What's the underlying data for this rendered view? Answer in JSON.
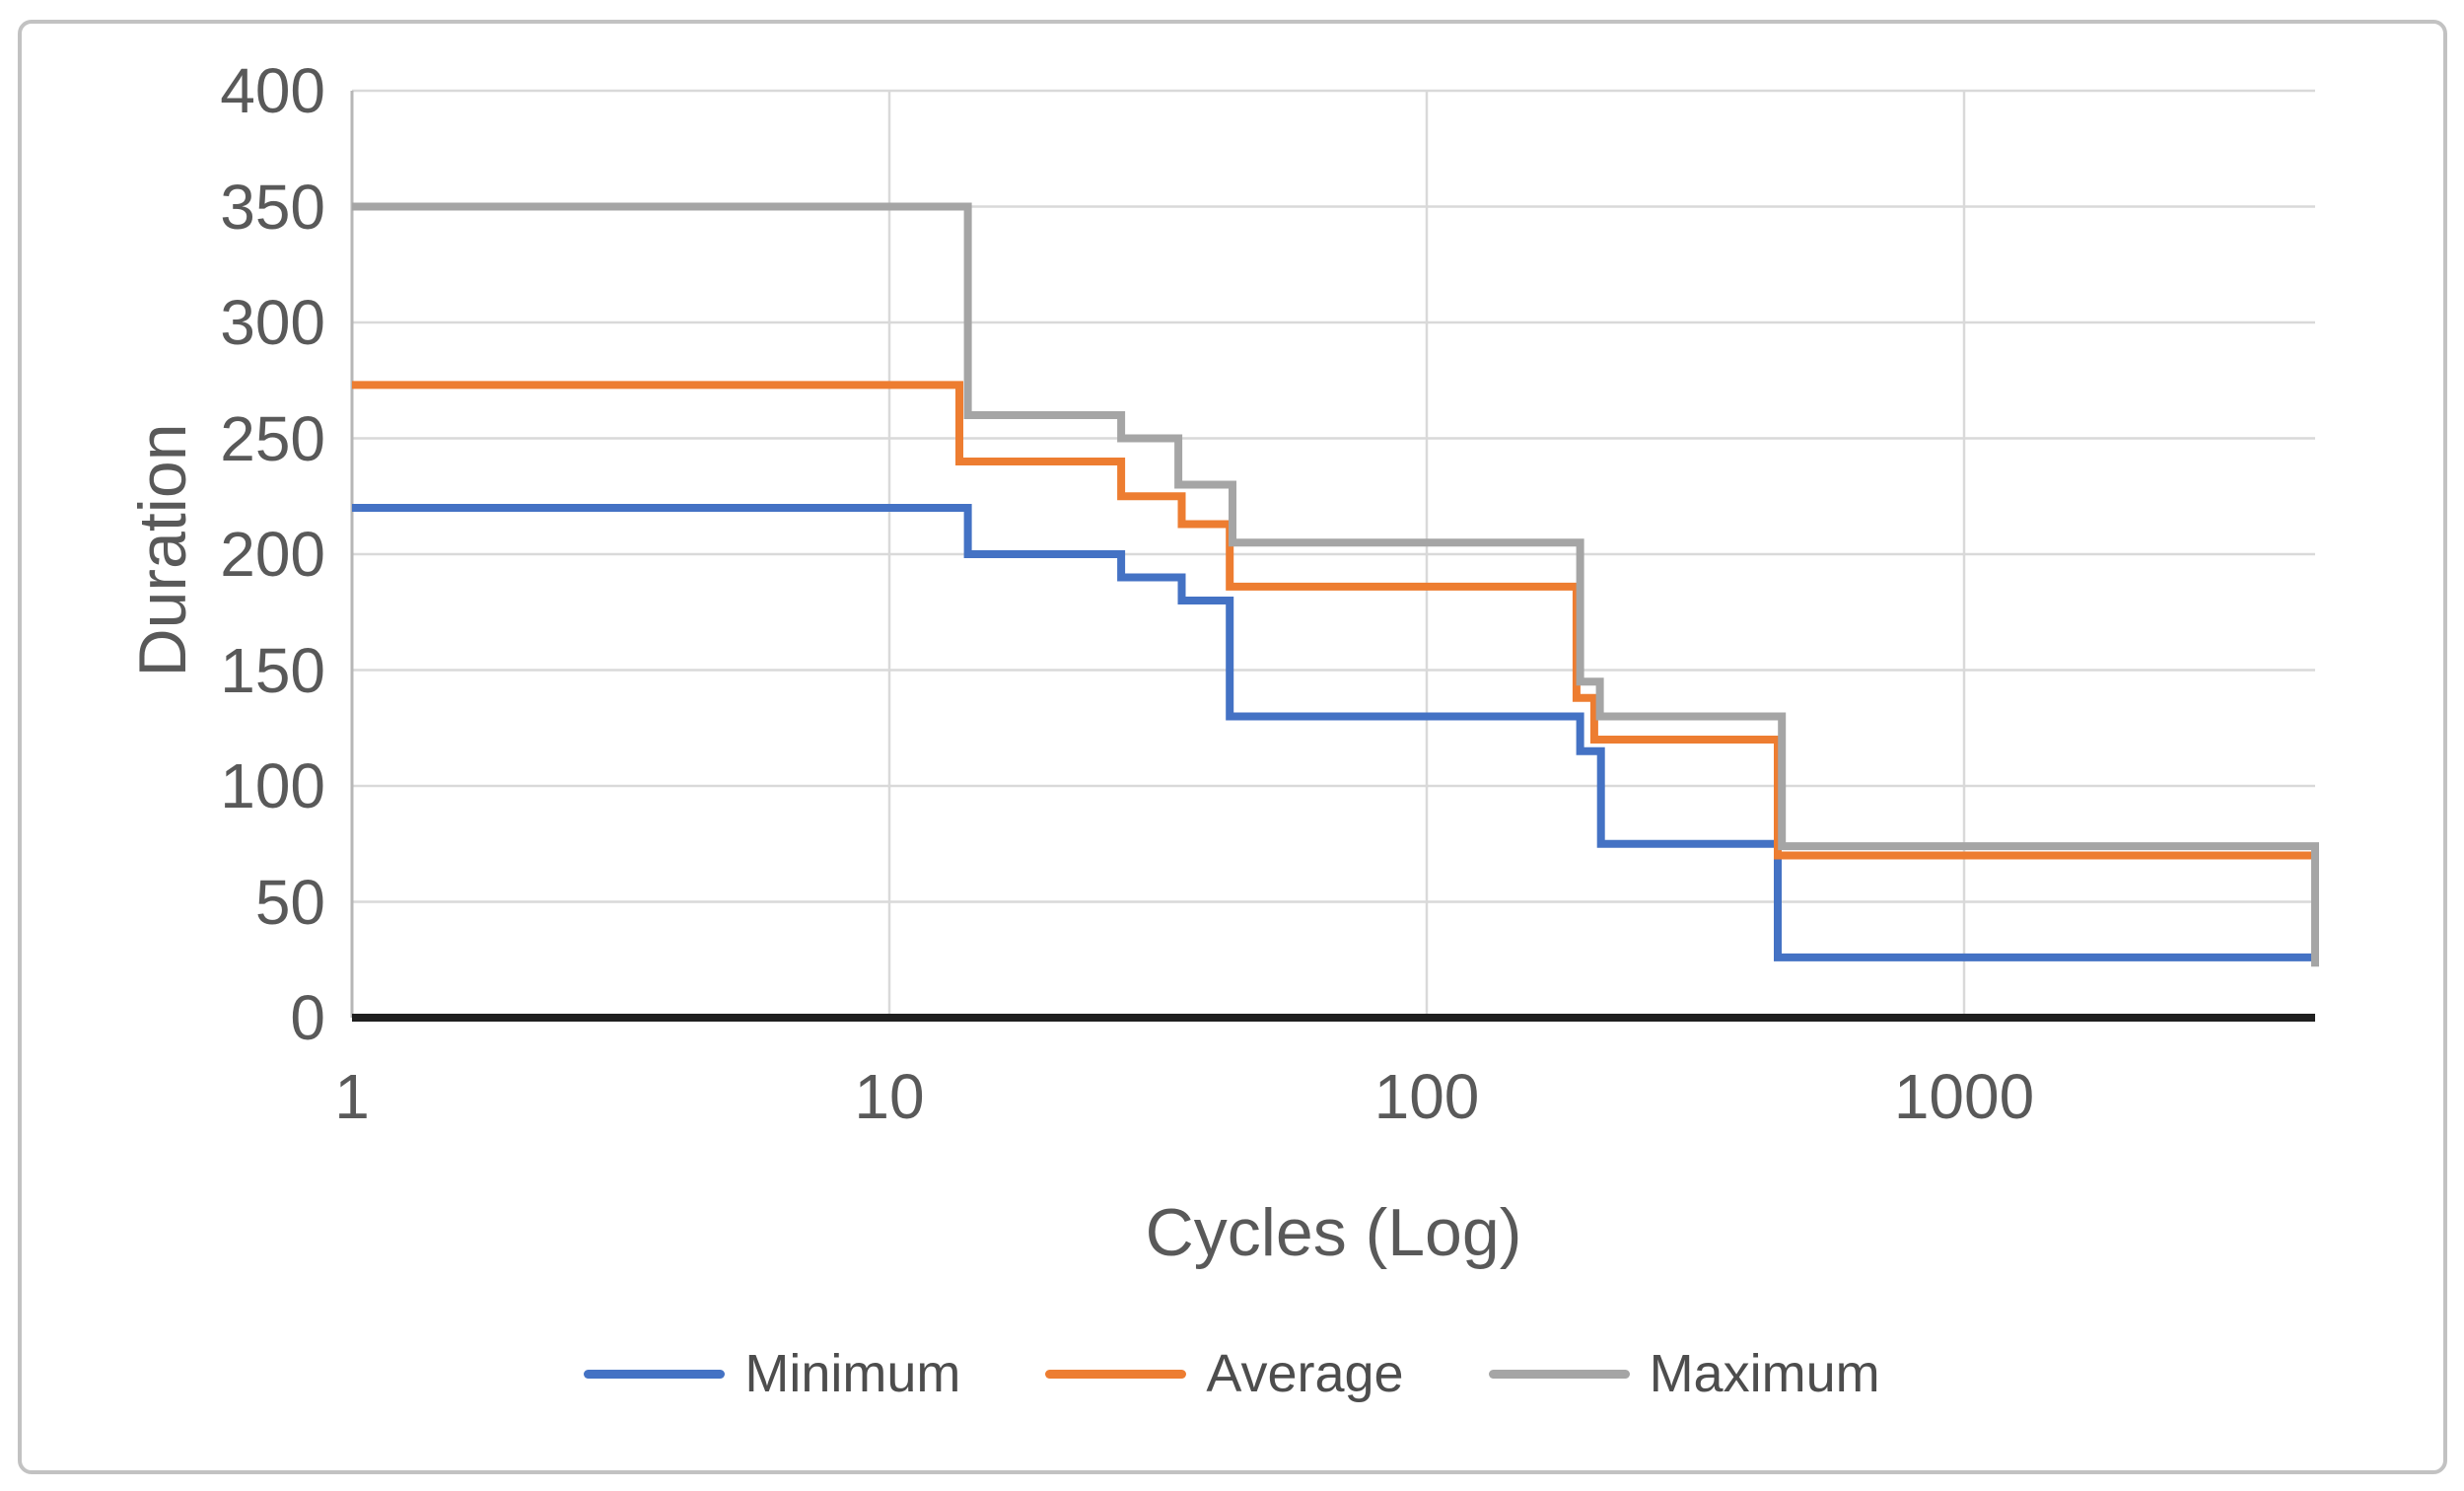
{
  "figure": {
    "background": "#ffffff",
    "border_color": "#c2c2c2"
  },
  "chart_data": {
    "type": "line",
    "subtype": "step",
    "title": "",
    "xlabel": "Cycles (Log)",
    "ylabel": "Duration",
    "x_scale": "log",
    "xlim": [
      1,
      4500
    ],
    "ylim": [
      0,
      400
    ],
    "y_ticks": [
      0,
      50,
      100,
      150,
      200,
      250,
      300,
      350,
      400
    ],
    "x_ticks": [
      1,
      10,
      100,
      1000
    ],
    "grid": true,
    "legend_position": "bottom",
    "axis_text_color": "#595959",
    "gridline_color": "#d9d9d9",
    "axis_line_color": "#b7b7b7",
    "baseline_color": "#1f1f1f",
    "series": [
      {
        "name": "Minimum",
        "color": "#4472C4",
        "points": [
          [
            1,
            220
          ],
          [
            14,
            220
          ],
          [
            14,
            200
          ],
          [
            27,
            200
          ],
          [
            27,
            190
          ],
          [
            35,
            190
          ],
          [
            35,
            180
          ],
          [
            43,
            180
          ],
          [
            43,
            130
          ],
          [
            193,
            130
          ],
          [
            193,
            115
          ],
          [
            211,
            115
          ],
          [
            211,
            75
          ],
          [
            450,
            75
          ],
          [
            450,
            26
          ],
          [
            4500,
            26
          ]
        ]
      },
      {
        "name": "Average",
        "color": "#ED7D31",
        "points": [
          [
            1,
            273
          ],
          [
            13.5,
            273
          ],
          [
            13.5,
            240
          ],
          [
            27,
            240
          ],
          [
            27,
            225
          ],
          [
            35,
            225
          ],
          [
            35,
            213
          ],
          [
            43,
            213
          ],
          [
            43,
            186
          ],
          [
            190,
            186
          ],
          [
            190,
            138
          ],
          [
            205,
            138
          ],
          [
            205,
            120
          ],
          [
            450,
            120
          ],
          [
            450,
            70
          ],
          [
            4500,
            70
          ]
        ]
      },
      {
        "name": "Maximum",
        "color": "#A5A5A5",
        "points": [
          [
            1,
            350
          ],
          [
            14,
            350
          ],
          [
            14,
            260
          ],
          [
            27,
            260
          ],
          [
            27,
            250
          ],
          [
            34.5,
            250
          ],
          [
            34.5,
            230
          ],
          [
            43.5,
            230
          ],
          [
            43.5,
            205
          ],
          [
            193,
            205
          ],
          [
            193,
            145
          ],
          [
            210,
            145
          ],
          [
            210,
            130
          ],
          [
            458,
            130
          ],
          [
            458,
            74
          ],
          [
            4500,
            74
          ],
          [
            4500,
            22
          ]
        ]
      }
    ]
  }
}
